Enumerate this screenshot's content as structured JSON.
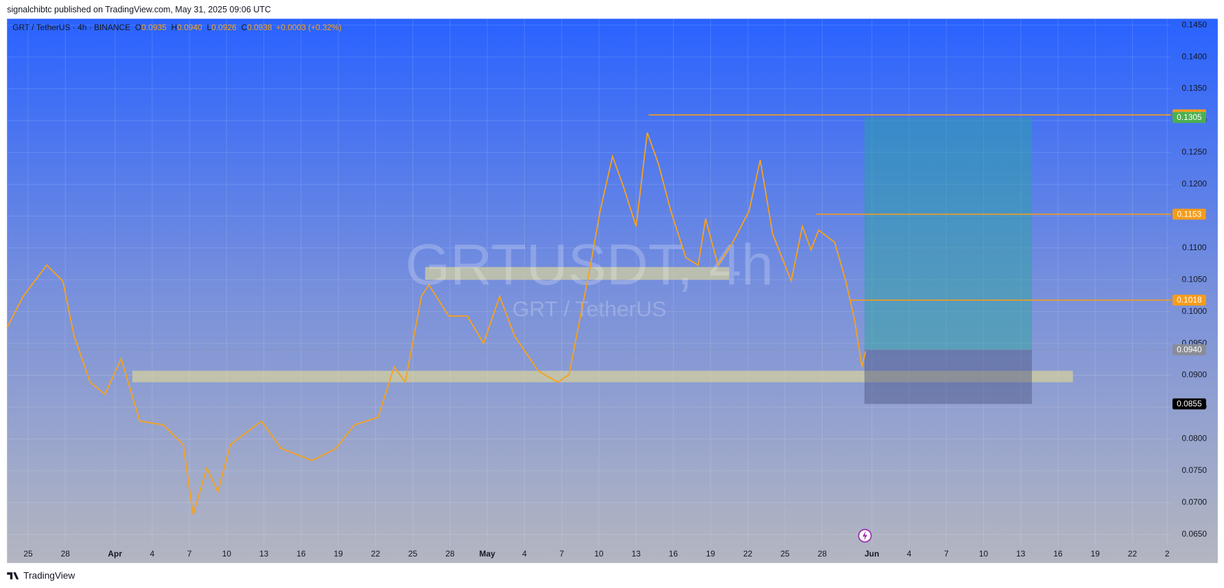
{
  "header": {
    "publisher": "signalchibtc published on TradingView.com, May 31, 2025 09:06 UTC"
  },
  "footer": {
    "brand": "TradingView"
  },
  "chart_data": {
    "type": "line",
    "symbol": "GRT / TetherUS · 4h · BINANCE",
    "ohlc": [
      {
        "key": "O",
        "value": "0.0935"
      },
      {
        "key": "H",
        "value": "0.0940"
      },
      {
        "key": "L",
        "value": "0.0926"
      },
      {
        "key": "C",
        "value": "0.0938"
      }
    ],
    "change": "+0.0003 (+0.32%)",
    "watermark": "GRTUSDT, 4h",
    "watermark_sub": "GRT / TetherUS",
    "color": "#f7a21b",
    "x": [
      -1.7,
      -0.4,
      1.5,
      2.8,
      3.7,
      5.0,
      6.2,
      7.5,
      9.0,
      10.9,
      12.5,
      13.3,
      14.4,
      15.3,
      16.3,
      18.8,
      20.4,
      22.9,
      24.8,
      26.3,
      28.2,
      29.5,
      30.4,
      31.1,
      31.7,
      32.3,
      33.9,
      35.4,
      36.7,
      38.0,
      39.2,
      41.1,
      42.7,
      43.6,
      44.2,
      45.2,
      46.1,
      47.1,
      48.0,
      49.0,
      49.9,
      50.8,
      51.8,
      53.0,
      54.0,
      54.6,
      55.6,
      56.8,
      58.1,
      59.0,
      60.0,
      61.5,
      62.4,
      63.1,
      63.7,
      65.0,
      65.9,
      66.6,
      67.2,
      67.5
    ],
    "values": [
      0.0975,
      0.1024,
      0.1073,
      0.1048,
      0.0962,
      0.0889,
      0.087,
      0.0926,
      0.0828,
      0.0822,
      0.0791,
      0.0681,
      0.0754,
      0.0717,
      0.0791,
      0.0828,
      0.0785,
      0.0766,
      0.0785,
      0.0822,
      0.0834,
      0.0913,
      0.0889,
      0.0962,
      0.1024,
      0.1042,
      0.0993,
      0.0993,
      0.095,
      0.1024,
      0.0962,
      0.0907,
      0.0889,
      0.0901,
      0.0962,
      0.106,
      0.1158,
      0.1244,
      0.1195,
      0.1134,
      0.1281,
      0.1232,
      0.1158,
      0.1085,
      0.1073,
      0.1146,
      0.1073,
      0.1109,
      0.1158,
      0.1238,
      0.1122,
      0.1048,
      0.1134,
      0.1097,
      0.1128,
      0.1109,
      0.1048,
      0.0987,
      0.0913,
      0.0938
    ],
    "xlim": [
      -1.7,
      92.1
    ],
    "xticks": [
      {
        "value": 0,
        "label": "25"
      },
      {
        "value": 3,
        "label": "28"
      },
      {
        "value": 7,
        "label": "Apr"
      },
      {
        "value": 10,
        "label": "4"
      },
      {
        "value": 13,
        "label": "7"
      },
      {
        "value": 16,
        "label": "10"
      },
      {
        "value": 19,
        "label": "13"
      },
      {
        "value": 22,
        "label": "16"
      },
      {
        "value": 25,
        "label": "19"
      },
      {
        "value": 28,
        "label": "22"
      },
      {
        "value": 31,
        "label": "25"
      },
      {
        "value": 34,
        "label": "28"
      },
      {
        "value": 37,
        "label": "May"
      },
      {
        "value": 40,
        "label": "4"
      },
      {
        "value": 43,
        "label": "7"
      },
      {
        "value": 46,
        "label": "10"
      },
      {
        "value": 49,
        "label": "13"
      },
      {
        "value": 52,
        "label": "16"
      },
      {
        "value": 55,
        "label": "19"
      },
      {
        "value": 58,
        "label": "22"
      },
      {
        "value": 61,
        "label": "25"
      },
      {
        "value": 64,
        "label": "28"
      },
      {
        "value": 68,
        "label": "Jun"
      },
      {
        "value": 71,
        "label": "4"
      },
      {
        "value": 74,
        "label": "7"
      },
      {
        "value": 77,
        "label": "10"
      },
      {
        "value": 80,
        "label": "13"
      },
      {
        "value": 83,
        "label": "16"
      },
      {
        "value": 86,
        "label": "19"
      },
      {
        "value": 89,
        "label": "22"
      },
      {
        "value": 91.8,
        "label": "2"
      }
    ],
    "ylim": [
      0.0632,
      0.146
    ],
    "yticks": [
      {
        "value": 0.065,
        "label": "0.0650"
      },
      {
        "value": 0.07,
        "label": "0.0700"
      },
      {
        "value": 0.075,
        "label": "0.0750"
      },
      {
        "value": 0.08,
        "label": "0.0800"
      },
      {
        "value": 0.085,
        "label": "0.0850"
      },
      {
        "value": 0.09,
        "label": "0.0900"
      },
      {
        "value": 0.095,
        "label": "0.0950"
      },
      {
        "value": 0.1,
        "label": "0.1000"
      },
      {
        "value": 0.105,
        "label": "0.1050"
      },
      {
        "value": 0.11,
        "label": "0.1100"
      },
      {
        "value": 0.115,
        "label": "0.1150"
      },
      {
        "value": 0.12,
        "label": "0.1200"
      },
      {
        "value": 0.125,
        "label": "0.1250"
      },
      {
        "value": 0.13,
        "label": "0.1300"
      },
      {
        "value": 0.135,
        "label": "0.1350"
      },
      {
        "value": 0.14,
        "label": "0.1400"
      },
      {
        "value": 0.145,
        "label": "0.1450"
      }
    ],
    "grid": true,
    "zones": [
      {
        "x": [
          32.0,
          56.5
        ],
        "y": [
          0.105,
          0.107
        ]
      },
      {
        "x": [
          8.4,
          84.2
        ],
        "y": [
          0.0889,
          0.0907
        ]
      }
    ],
    "levels": [
      {
        "value": 0.1309,
        "label": "0.1309",
        "from": 50.0,
        "color": "#f59c1a"
      },
      {
        "value": 0.1153,
        "label": "0.1153",
        "from": 63.5,
        "color": "#f59c1a"
      },
      {
        "value": 0.1018,
        "label": "0.1018",
        "from": 66.2,
        "color": "#f59c1a"
      }
    ],
    "position": {
      "x": [
        67.4,
        80.9
      ],
      "target": {
        "value": 0.1305,
        "label": "0.1305",
        "color": "#4caf50"
      },
      "entry": {
        "value": 0.094,
        "label": "0.0940",
        "color": "#8a8d96"
      },
      "stop": {
        "value": 0.0855,
        "label": "0.0855",
        "color": "#000000"
      }
    }
  }
}
